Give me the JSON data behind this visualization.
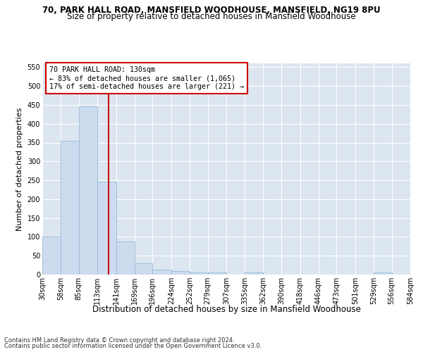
{
  "title": "70, PARK HALL ROAD, MANSFIELD WOODHOUSE, MANSFIELD, NG19 8PU",
  "subtitle": "Size of property relative to detached houses in Mansfield Woodhouse",
  "xlabel": "Distribution of detached houses by size in Mansfield Woodhouse",
  "ylabel": "Number of detached properties",
  "bar_values": [
    100,
    355,
    447,
    246,
    88,
    30,
    14,
    9,
    5,
    5,
    0,
    5,
    0,
    0,
    0,
    0,
    0,
    0,
    5,
    0
  ],
  "bin_labels": [
    "30sqm",
    "58sqm",
    "85sqm",
    "113sqm",
    "141sqm",
    "169sqm",
    "196sqm",
    "224sqm",
    "252sqm",
    "279sqm",
    "307sqm",
    "335sqm",
    "362sqm",
    "390sqm",
    "418sqm",
    "446sqm",
    "473sqm",
    "501sqm",
    "529sqm",
    "556sqm",
    "584sqm"
  ],
  "bin_edges": [
    30,
    58,
    85,
    113,
    141,
    169,
    196,
    224,
    252,
    279,
    307,
    335,
    362,
    390,
    418,
    446,
    473,
    501,
    529,
    556,
    584
  ],
  "bar_color": "#ccdcee",
  "bar_edge_color": "#9ab8d5",
  "vline_x": 130,
  "vline_color": "#cc0000",
  "ylim": [
    0,
    560
  ],
  "yticks": [
    0,
    50,
    100,
    150,
    200,
    250,
    300,
    350,
    400,
    450,
    500,
    550
  ],
  "annotation_text": "70 PARK HALL ROAD: 130sqm\n← 83% of detached houses are smaller (1,065)\n17% of semi-detached houses are larger (221) →",
  "annotation_box_color": "#ffffff",
  "annotation_box_edge": "#cc0000",
  "footer_line1": "Contains HM Land Registry data © Crown copyright and database right 2024.",
  "footer_line2": "Contains public sector information licensed under the Open Government Licence v3.0.",
  "background_color": "#dce6f0",
  "fig_background_color": "#ffffff",
  "grid_color": "#ffffff",
  "title_fontsize": 8.5,
  "subtitle_fontsize": 8.5,
  "tick_fontsize": 7,
  "ylabel_fontsize": 8,
  "xlabel_fontsize": 8.5,
  "footer_fontsize": 6.0
}
